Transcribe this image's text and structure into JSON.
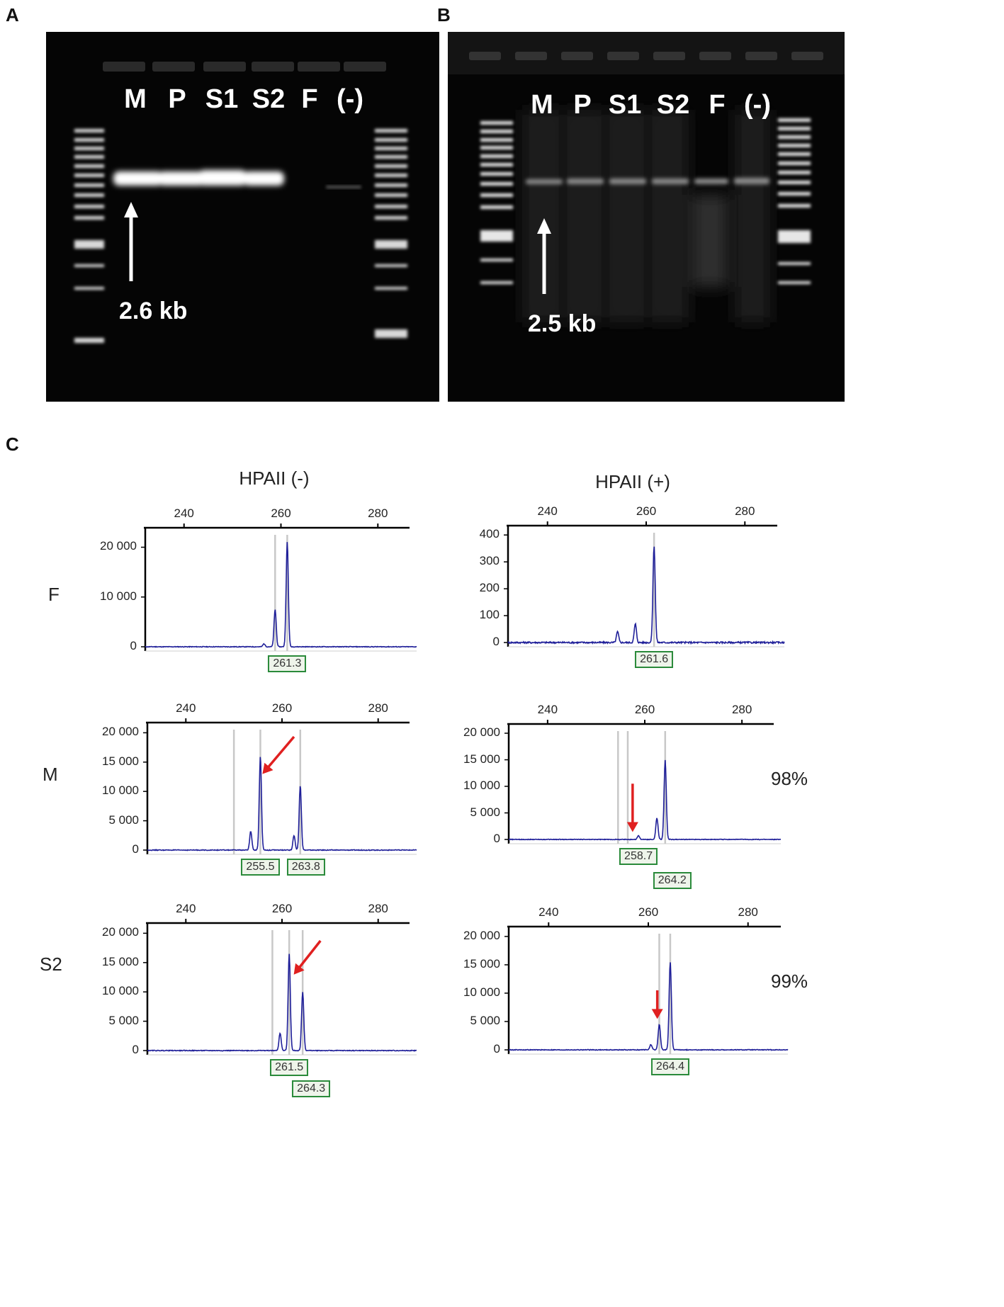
{
  "panels": {
    "a": {
      "letter": "A",
      "lanes": [
        "M",
        "P",
        "S1",
        "S2",
        "F",
        "(-)"
      ],
      "band_size": "2.6 kb"
    },
    "b": {
      "letter": "B",
      "lanes": [
        "M",
        "P",
        "S1",
        "S2",
        "F",
        "(-)"
      ],
      "band_size": "2.5 kb"
    },
    "c": {
      "letter": "C",
      "col_headers": [
        "HPAII (-)",
        "HPAII (+)"
      ],
      "row_labels": [
        "F",
        "M",
        "S2"
      ],
      "percentages": [
        "98%",
        "99%"
      ]
    }
  },
  "chart_data": [
    {
      "type": "line",
      "id": "F-minus",
      "xlim": [
        232,
        288
      ],
      "ylim": [
        0,
        22000
      ],
      "xticks": [
        "240",
        "260",
        "280"
      ],
      "yticks": [
        "20 000",
        "10 000",
        "0"
      ],
      "peaks": [
        [
          256.5,
          600
        ],
        [
          258.8,
          7500
        ],
        [
          261.3,
          21000
        ]
      ],
      "peak_labels": [
        "261.3"
      ],
      "color": "#1f1f99"
    },
    {
      "type": "line",
      "id": "F-plus",
      "xlim": [
        232,
        288
      ],
      "ylim": [
        0,
        400
      ],
      "xticks": [
        "240",
        "260",
        "280"
      ],
      "yticks": [
        "400",
        "300",
        "200",
        "100",
        "0"
      ],
      "peaks": [
        [
          254.2,
          40
        ],
        [
          257.8,
          70
        ],
        [
          261.6,
          360
        ]
      ],
      "peak_labels": [
        "261.6"
      ],
      "color": "#1f1f99"
    },
    {
      "type": "line",
      "id": "M-minus",
      "xlim": [
        232,
        288
      ],
      "ylim": [
        0,
        20000
      ],
      "xticks": [
        "240",
        "260",
        "280"
      ],
      "yticks": [
        "20 000",
        "15 000",
        "10 000",
        "5 000",
        "0"
      ],
      "peaks": [
        [
          253.5,
          3200
        ],
        [
          255.5,
          16000
        ],
        [
          262.5,
          2500
        ],
        [
          263.8,
          11000
        ]
      ],
      "peak_labels": [
        "255.5",
        "263.8"
      ],
      "color": "#1f1f99"
    },
    {
      "type": "line",
      "id": "M-plus",
      "xlim": [
        232,
        288
      ],
      "ylim": [
        0,
        20000
      ],
      "xticks": [
        "240",
        "260",
        "280"
      ],
      "yticks": [
        "20 000",
        "15 000",
        "10 000",
        "5 000",
        "0"
      ],
      "peaks": [
        [
          258.7,
          700
        ],
        [
          262.5,
          4000
        ],
        [
          264.2,
          15000
        ]
      ],
      "peak_labels": [
        "258.7",
        "264.2"
      ],
      "color": "#1f1f99"
    },
    {
      "type": "line",
      "id": "S2-minus",
      "xlim": [
        232,
        288
      ],
      "ylim": [
        0,
        20000
      ],
      "xticks": [
        "240",
        "260",
        "280"
      ],
      "yticks": [
        "20 000",
        "15 000",
        "10 000",
        "5 000",
        "0"
      ],
      "peaks": [
        [
          259.6,
          3000
        ],
        [
          261.5,
          16500
        ],
        [
          264.3,
          10000
        ]
      ],
      "peak_labels": [
        "261.5",
        "264.3"
      ],
      "color": "#1f1f99"
    },
    {
      "type": "line",
      "id": "S2-plus",
      "xlim": [
        232,
        288
      ],
      "ylim": [
        0,
        20000
      ],
      "xticks": [
        "240",
        "260",
        "280"
      ],
      "yticks": [
        "20 000",
        "15 000",
        "10 000",
        "5 000",
        "0"
      ],
      "peaks": [
        [
          260.5,
          900
        ],
        [
          262.2,
          4500
        ],
        [
          264.4,
          15500
        ]
      ],
      "peak_labels": [
        "264.4"
      ],
      "color": "#1f1f99"
    }
  ]
}
